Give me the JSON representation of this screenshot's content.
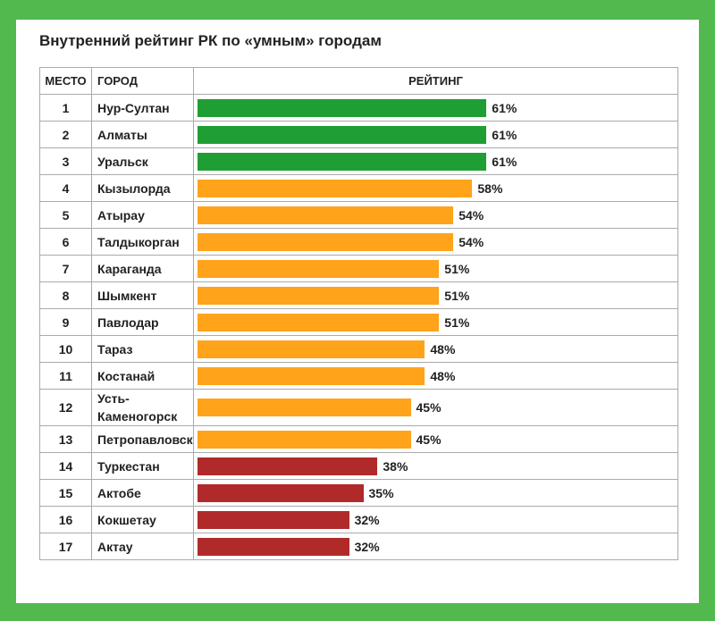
{
  "chart_data": {
    "type": "bar",
    "title": "Внутренний рейтинг РК по «умным» городам",
    "headers": [
      "МЕСТО",
      "ГОРОД",
      "РЕЙТИНГ"
    ],
    "ranks": [
      1,
      2,
      3,
      4,
      5,
      6,
      7,
      8,
      9,
      10,
      11,
      12,
      13,
      14,
      15,
      16,
      17
    ],
    "categories": [
      "Нур-Султан",
      "Алматы",
      "Уральск",
      "Кызылорда",
      "Атырау",
      "Талдыкорган",
      "Караганда",
      "Шымкент",
      "Павлодар",
      "Тараз",
      "Костанай",
      "Усть-Каменогорск",
      "Петропавловск",
      "Туркестан",
      "Актобе",
      "Кокшетау",
      "Актау"
    ],
    "values": [
      61,
      61,
      61,
      58,
      54,
      54,
      51,
      51,
      51,
      48,
      48,
      45,
      45,
      38,
      35,
      32,
      32
    ],
    "value_labels": [
      "61%",
      "61%",
      "61%",
      "58%",
      "54%",
      "54%",
      "51%",
      "51%",
      "51%",
      "48%",
      "48%",
      "45%",
      "45%",
      "38%",
      "35%",
      "32%",
      "32%"
    ],
    "colors": [
      "#1f9e34",
      "#1f9e34",
      "#1f9e34",
      "#ffa31a",
      "#ffa31a",
      "#ffa31a",
      "#ffa31a",
      "#ffa31a",
      "#ffa31a",
      "#ffa31a",
      "#ffa31a",
      "#ffa31a",
      "#ffa31a",
      "#b02a2a",
      "#b02a2a",
      "#b02a2a",
      "#b02a2a"
    ]
  }
}
